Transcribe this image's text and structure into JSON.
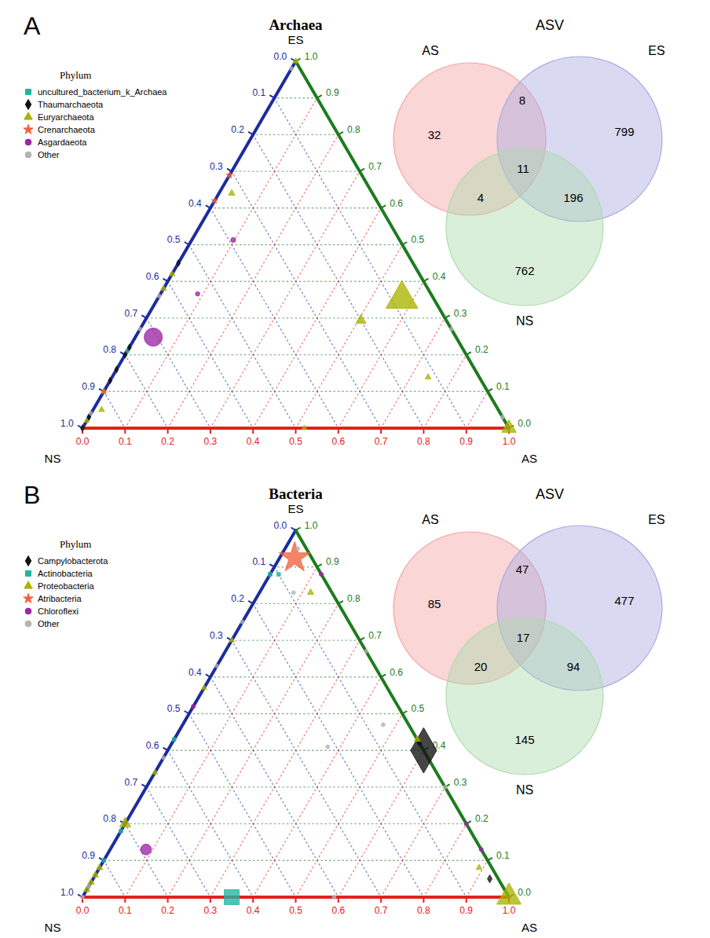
{
  "chart_data": [
    {
      "type": "ternary",
      "panel": "A",
      "title": "Archaea",
      "grid": true,
      "legend": "top-left",
      "legend_title": "Phylum",
      "axes": [
        {
          "label": "NS",
          "color": "#1c2c9e",
          "lim": [
            0,
            1
          ],
          "ticks": [
            {
              "value": 0,
              "label": "0.0"
            },
            0.1,
            0.2,
            0.3,
            0.4,
            0.5,
            0.6,
            0.7,
            0.8,
            0.9,
            {
              "value": 1,
              "label": "1.0"
            }
          ]
        },
        {
          "label": "ES",
          "color": "#1e7b1e",
          "lim": [
            0,
            1
          ],
          "ticks": [
            {
              "value": 0,
              "label": "0.0"
            },
            0.1,
            0.2,
            0.3,
            0.4,
            0.5,
            0.6,
            0.7,
            0.8,
            0.9,
            {
              "value": 1,
              "label": "1.0"
            }
          ]
        },
        {
          "label": "AS",
          "color": "#e3211b",
          "lim": [
            0,
            1
          ],
          "ticks": [
            {
              "value": 0,
              "label": "0.0"
            },
            0.1,
            0.2,
            0.3,
            0.4,
            0.5,
            0.6,
            0.7,
            0.8,
            0.9,
            {
              "value": 1,
              "label": "1.0"
            }
          ]
        }
      ],
      "series": [
        {
          "name": "uncultured_bacterium_k_Archaea",
          "color": "#1fb5a0",
          "marker": "square",
          "ns": [
            0.79
          ],
          "es": [
            0.21
          ],
          "as": [
            0
          ],
          "size": [
            0.3
          ]
        },
        {
          "name": "Thaumarchaeota",
          "color": "#111111",
          "marker": "diamond",
          "ns": [
            0.55,
            0.78,
            0.8,
            0.84,
            0.87,
            0.97,
            1
          ],
          "es": [
            0.45,
            0.22,
            0.2,
            0.16,
            0.13,
            0.03,
            0
          ],
          "as": [
            0,
            0,
            0,
            0,
            0,
            0,
            0
          ],
          "size": [
            0.35,
            0.35,
            0.35,
            0.35,
            0.35,
            0.35,
            0.35
          ]
        },
        {
          "name": "Euryarchaeota",
          "color": "#a9b300",
          "marker": "triangle",
          "ns": [
            0.075,
            0.2,
            0.12,
            0,
            0.48,
            0.93,
            0.33,
            0.58,
            0.62,
            0.9,
            0.98,
            0
          ],
          "es": [
            0.352,
            0.294,
            0.139,
            0,
            0,
            0.05,
            0.64,
            0.42,
            0.38,
            0.1,
            0.02,
            1
          ],
          "as": [
            0.573,
            0.506,
            0.741,
            1,
            0.52,
            0.02,
            0.03,
            0,
            0,
            0,
            0,
            0
          ],
          "size": [
            12,
            1.2,
            0.4,
            2.5,
            0.3,
            0.4,
            0.5,
            0.4,
            0.4,
            0.3,
            0.3,
            0.4
          ]
        },
        {
          "name": "Crenarchaeota",
          "color": "#f2603c",
          "marker": "star",
          "ns": [
            0.31,
            0.38,
            0.9
          ],
          "es": [
            0.69,
            0.62,
            0.1
          ],
          "as": [
            0,
            0,
            0
          ],
          "size": [
            0.4,
            0.35,
            0.35
          ]
        },
        {
          "name": "Asgardaeota",
          "color": "#9c27a6",
          "marker": "circle",
          "ns": [
            0.71,
            0.39,
            0.547
          ],
          "es": [
            0.248,
            0.513,
            0.366
          ],
          "as": [
            0.042,
            0.097,
            0.087
          ],
          "size": [
            7,
            0.5,
            0.4
          ]
        },
        {
          "name": "Other",
          "color": "#b4b4b4",
          "marker": "circle",
          "ns": [
            0.96,
            0.73,
            0,
            0.02,
            0,
            0.64
          ],
          "es": [
            0.04,
            0.27,
            0.27,
            0.98,
            0.03,
            0.36
          ],
          "as": [
            0,
            0,
            0.73,
            0,
            0.97,
            0
          ],
          "size": [
            0.3,
            0.3,
            0.3,
            0.3,
            0.3,
            0.3
          ]
        }
      ]
    },
    {
      "type": "venn",
      "title": "ASV",
      "sets": [
        {
          "name": "AS",
          "color": "#f4a3a3"
        },
        {
          "name": "ES",
          "color": "#aaaae2"
        },
        {
          "name": "NS",
          "color": "#addcad"
        }
      ],
      "regions": [
        {
          "sets": [
            0
          ],
          "value": 32
        },
        {
          "sets": [
            1
          ],
          "value": 799
        },
        {
          "sets": [
            2
          ],
          "value": 762
        },
        {
          "sets": [
            0,
            1
          ],
          "value": 8
        },
        {
          "sets": [
            0,
            2
          ],
          "value": 4
        },
        {
          "sets": [
            1,
            2
          ],
          "value": 196
        },
        {
          "sets": [
            0,
            1,
            2
          ],
          "value": 11
        }
      ]
    },
    {
      "type": "ternary",
      "panel": "B",
      "title": "Bacteria",
      "grid": true,
      "legend": "top-left",
      "legend_title": "Phylum",
      "axes": [
        {
          "label": "NS",
          "color": "#1c2c9e",
          "lim": [
            0,
            1
          ],
          "ticks": [
            {
              "value": 0,
              "label": "0.0"
            },
            0.1,
            0.2,
            0.3,
            0.4,
            0.5,
            0.6,
            0.7,
            0.8,
            0.9,
            {
              "value": 1,
              "label": "1.0"
            }
          ]
        },
        {
          "label": "ES",
          "color": "#1e7b1e",
          "lim": [
            0,
            1
          ],
          "ticks": [
            {
              "value": 0,
              "label": "0.0"
            },
            0.1,
            0.2,
            0.3,
            0.4,
            0.5,
            0.6,
            0.7,
            0.8,
            0.9,
            {
              "value": 1,
              "label": "1.0"
            }
          ]
        },
        {
          "label": "AS",
          "color": "#e3211b",
          "lim": [
            0,
            1
          ],
          "ticks": [
            {
              "value": 0,
              "label": "0.0"
            },
            0.1,
            0.2,
            0.3,
            0.4,
            0.5,
            0.6,
            0.7,
            0.8,
            0.9,
            {
              "value": 1,
              "label": "1.0"
            }
          ]
        }
      ],
      "series": [
        {
          "name": "Campylobacterota",
          "color": "#111111",
          "marker": "diamond",
          "ns": [
            0,
            0.02,
            0
          ],
          "es": [
            0.4,
            0.05,
            0.42
          ],
          "as": [
            0.6,
            0.93,
            0.58
          ],
          "size": [
            16,
            0.5,
            0.4
          ]
        },
        {
          "name": "Actinobacteria",
          "color": "#1fb5a0",
          "marker": "square",
          "ns": [
            0.65,
            0.12,
            0.57,
            0.82,
            0.9,
            0.1
          ],
          "es": [
            0,
            0.88,
            0.43,
            0.18,
            0.1,
            0.88
          ],
          "as": [
            0.35,
            0,
            0,
            0,
            0,
            0.02
          ],
          "size": [
            6,
            0.4,
            0.35,
            0.35,
            0.35,
            0.35
          ]
        },
        {
          "name": "Proteobacteria",
          "color": "#a9b300",
          "marker": "triangle",
          "ns": [
            0,
            0.8,
            0.92,
            0.94,
            0.96,
            0.98,
            0.05,
            0.03,
            0.3,
            0.43,
            0.66,
            0
          ],
          "es": [
            0,
            0.2,
            0.08,
            0.06,
            0.04,
            0.02,
            0.83,
            0.08,
            0.7,
            0.57,
            0.34,
            0.43
          ],
          "as": [
            1,
            0,
            0,
            0,
            0,
            0,
            0.12,
            0.89,
            0,
            0,
            0,
            0.57
          ],
          "size": [
            7,
            1.5,
            0.5,
            0.5,
            0.5,
            0.5,
            0.5,
            0.4,
            0.35,
            0.35,
            0.35,
            0.5
          ]
        },
        {
          "name": "Atribacteria",
          "color": "#f2603c",
          "marker": "star",
          "ns": [
            0.04
          ],
          "es": [
            0.925
          ],
          "as": [
            0.035
          ],
          "size": [
            8
          ]
        },
        {
          "name": "Chloroflexi",
          "color": "#9c27a6",
          "marker": "circle",
          "ns": [
            0.786,
            0.48,
            0,
            0,
            0
          ],
          "es": [
            0.13,
            0.52,
            0.2,
            0.13,
            0.88
          ],
          "as": [
            0.084,
            0,
            0.8,
            0.87,
            0.12
          ],
          "size": [
            2.5,
            0.35,
            0.35,
            0.35,
            0.35
          ]
        },
        {
          "name": "Other",
          "color": "#b4b4b4",
          "marker": "circle",
          "ns": [
            0.02,
            0,
            0.06,
            0.22,
            0.41,
            0.25,
            0.37,
            0.62,
            0.97,
            1,
            0,
            0.09
          ],
          "es": [
            0.95,
            0.67,
            0.47,
            0.41,
            0,
            0.75,
            0.63,
            0.38,
            0.03,
            0,
            0.3,
            0.83
          ],
          "as": [
            0.03,
            0.33,
            0.47,
            0.37,
            0.59,
            0,
            0,
            0,
            0,
            0,
            0.7,
            0.08
          ],
          "size": [
            0.3,
            0.3,
            0.3,
            0.3,
            0.3,
            0.3,
            0.3,
            0.3,
            0.3,
            0.3,
            0.3,
            0.3
          ]
        }
      ]
    },
    {
      "type": "venn",
      "title": "ASV",
      "sets": [
        {
          "name": "AS",
          "color": "#f4a3a3"
        },
        {
          "name": "ES",
          "color": "#aaaae2"
        },
        {
          "name": "NS",
          "color": "#addcad"
        }
      ],
      "regions": [
        {
          "sets": [
            0
          ],
          "value": 85
        },
        {
          "sets": [
            1
          ],
          "value": 477
        },
        {
          "sets": [
            2
          ],
          "value": 145
        },
        {
          "sets": [
            0,
            1
          ],
          "value": 47
        },
        {
          "sets": [
            0,
            2
          ],
          "value": 20
        },
        {
          "sets": [
            1,
            2
          ],
          "value": 94
        },
        {
          "sets": [
            0,
            1,
            2
          ],
          "value": 17
        }
      ]
    }
  ]
}
